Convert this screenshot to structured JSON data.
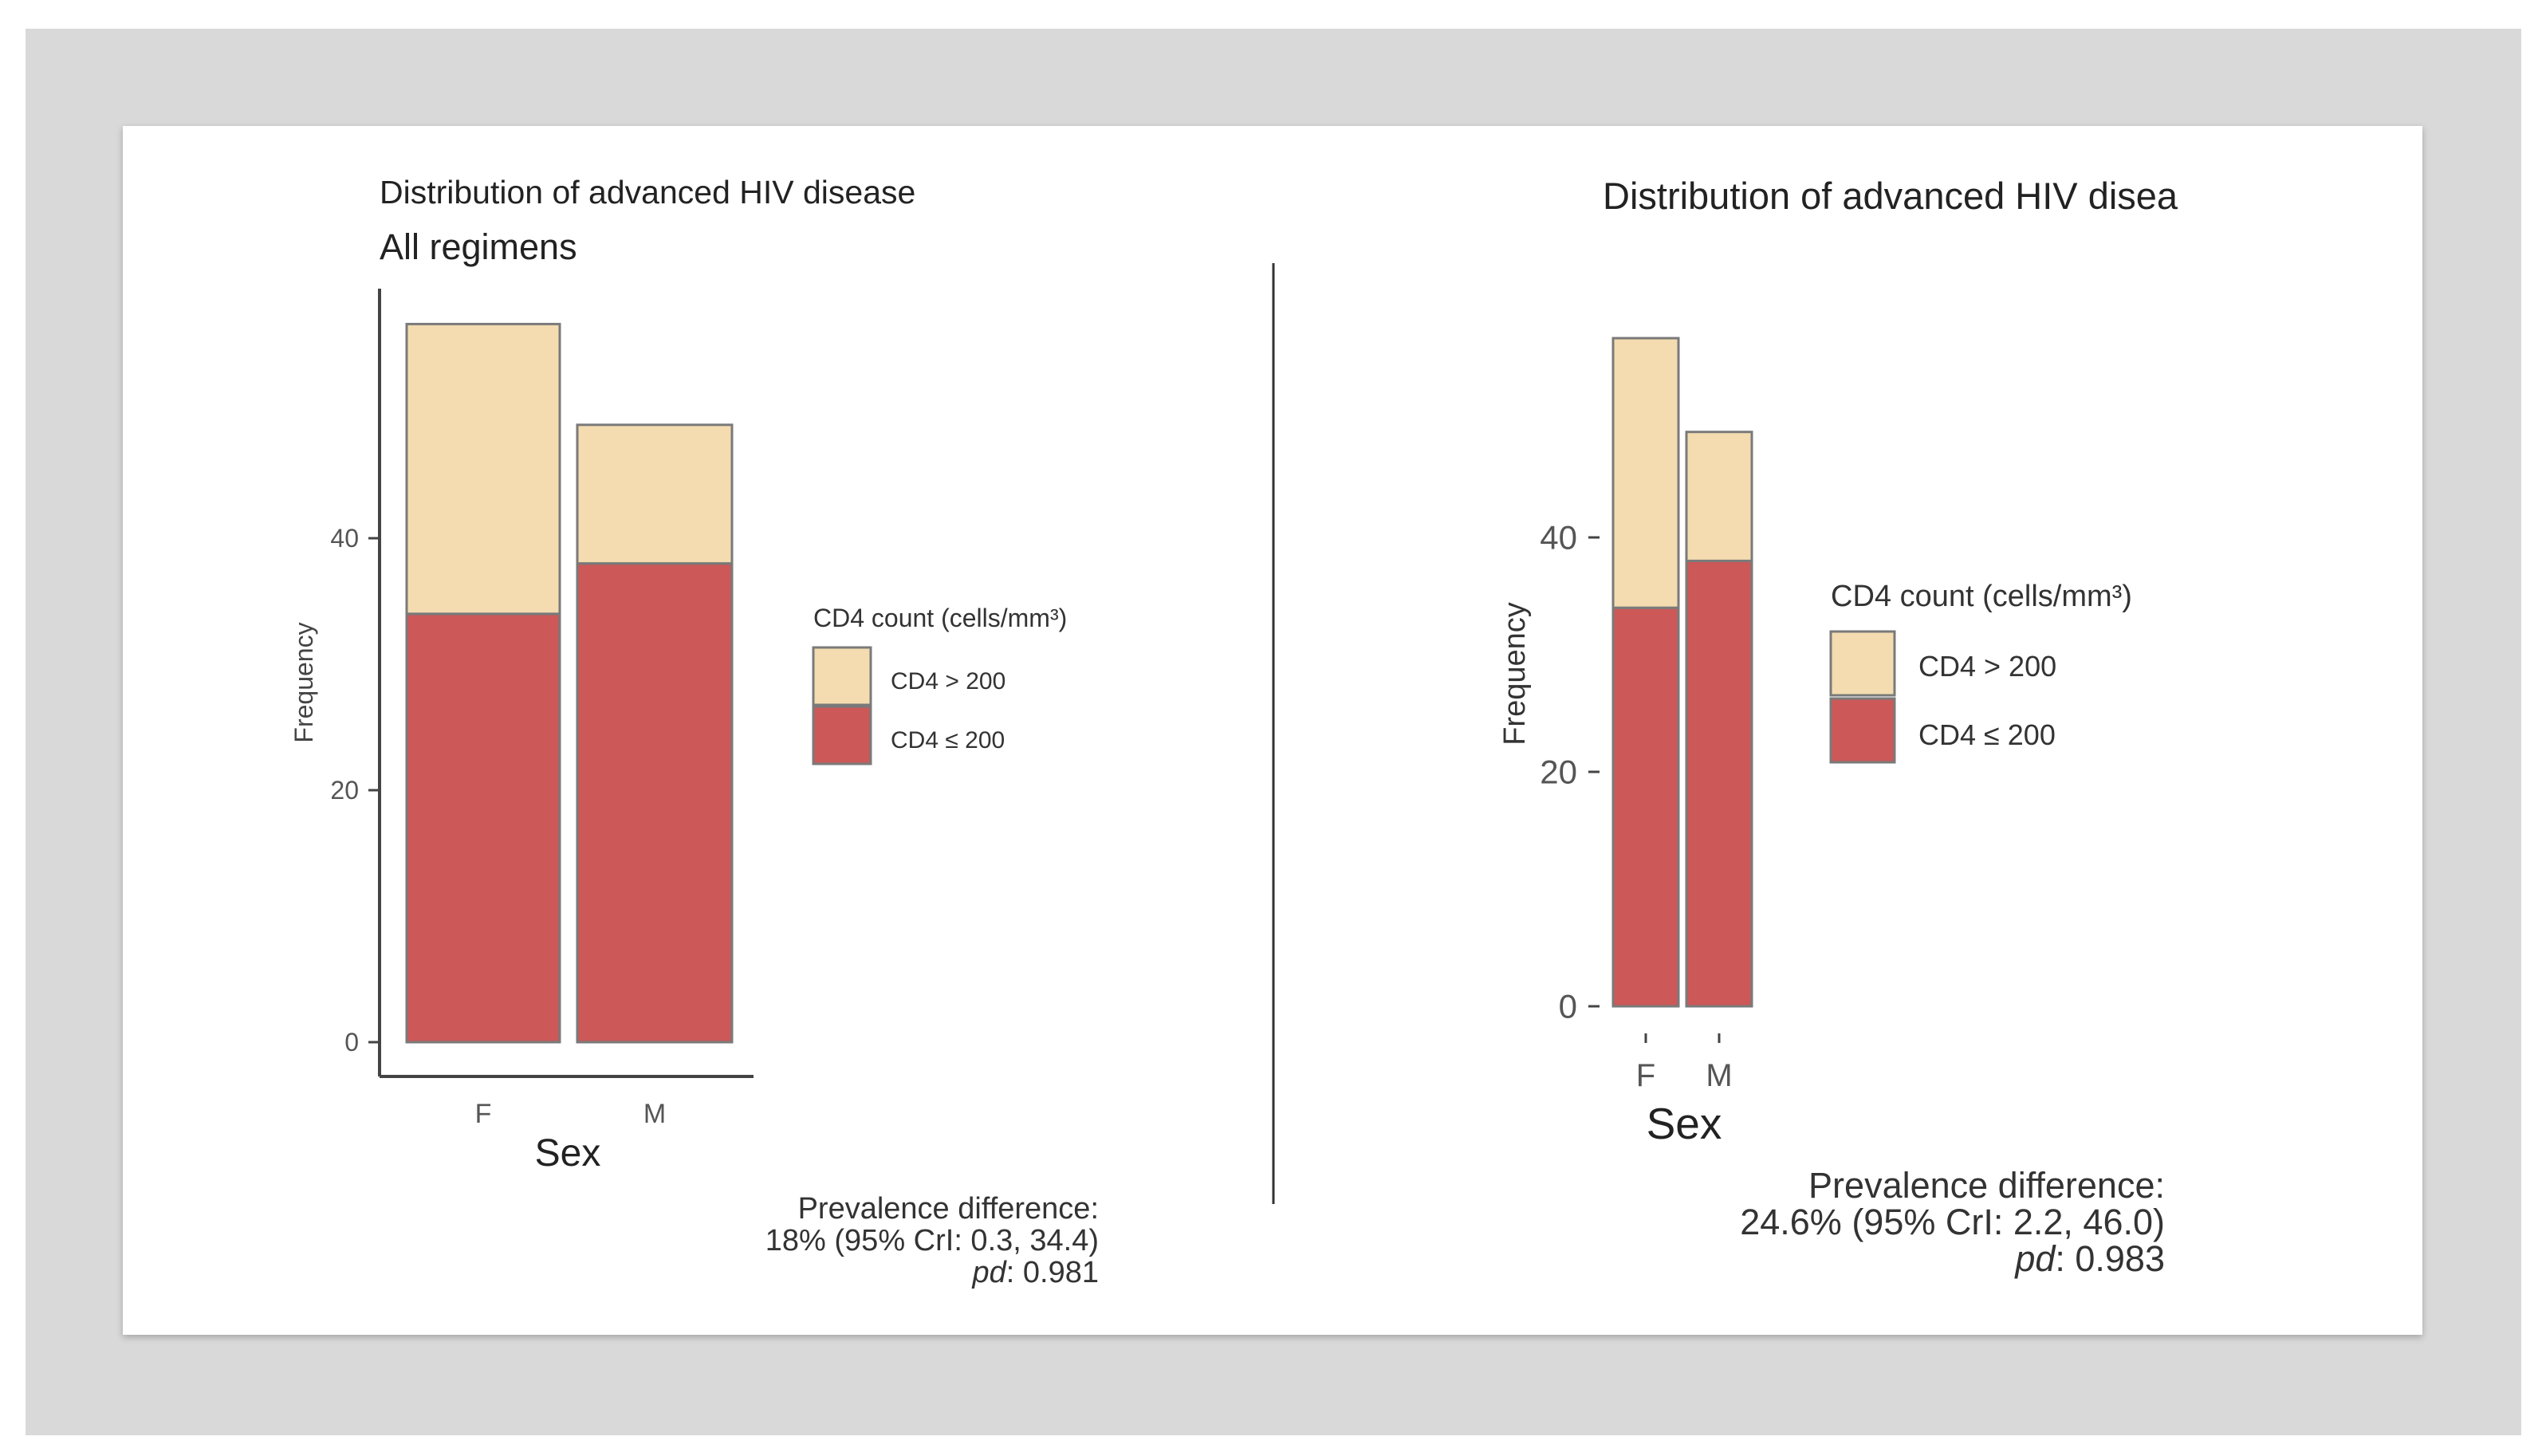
{
  "colors": {
    "background": "#d9d9d9",
    "panel": "#ffffff",
    "cd4_high": "#f4dcb0",
    "cd4_low": "#cc5858",
    "bar_outline": "#7a7a7a",
    "axis": "#444444",
    "text": "#222222"
  },
  "chart_data": [
    {
      "type": "bar",
      "stacked": true,
      "title": "Distribution of advanced HIV disease",
      "subtitle": "All regimens",
      "xlabel": "Sex",
      "ylabel": "Frequency",
      "categories": [
        "F",
        "M"
      ],
      "ylim": [
        0,
        60
      ],
      "yticks": [
        0,
        20,
        40
      ],
      "legend": {
        "title": "CD4 count (cells/mm³)",
        "position": "right"
      },
      "series": [
        {
          "name": "CD4 ≤ 200",
          "values": [
            34,
            38
          ]
        },
        {
          "name": "CD4 > 200",
          "values": [
            23,
            11
          ]
        }
      ],
      "annotation": {
        "line1": "Prevalence difference:",
        "line2": "18% (95% CrI: 0.3, 34.4)",
        "pd_label": "pd",
        "pd_value": ": 0.981"
      }
    },
    {
      "type": "bar",
      "stacked": true,
      "title": "Distribution of advanced HIV disea",
      "subtitle": "",
      "xlabel": "Sex",
      "ylabel": "Frequency",
      "categories": [
        "F",
        "M"
      ],
      "ylim": [
        0,
        60
      ],
      "yticks": [
        0,
        20,
        40
      ],
      "legend": {
        "title": "CD4 count (cells/mm³)",
        "position": "right"
      },
      "series": [
        {
          "name": "CD4 ≤ 200",
          "values": [
            34,
            38
          ]
        },
        {
          "name": "CD4 > 200",
          "values": [
            23,
            11
          ]
        }
      ],
      "annotation": {
        "line1": "Prevalence difference:",
        "line2": "24.6% (95% CrI: 2.2, 46.0)",
        "pd_label": "pd",
        "pd_value": ": 0.983"
      }
    }
  ]
}
